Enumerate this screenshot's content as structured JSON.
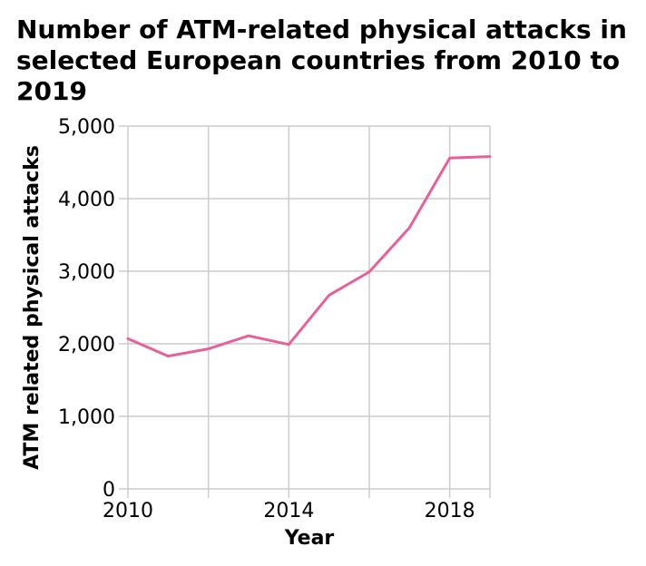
{
  "chart_data": {
    "type": "line",
    "title": "Number of ATM-related physical attacks in selected European countries from 2010 to 2019",
    "title_lines": [
      "Number of ATM-related physical attacks in",
      "selected European countries from 2010 to",
      "2019"
    ],
    "xlabel": "Year",
    "ylabel": "ATM related physical attacks",
    "x": [
      2010,
      2011,
      2012,
      2013,
      2014,
      2015,
      2016,
      2017,
      2018,
      2019
    ],
    "series": [
      {
        "values": [
          2070,
          1830,
          1930,
          2110,
          1990,
          2670,
          2990,
          3600,
          4560,
          4580
        ],
        "color": "#e8609a"
      }
    ],
    "xlim": [
      2010,
      2019
    ],
    "ylim": [
      0,
      5000
    ],
    "x_ticks": [
      2010,
      2014,
      2018
    ],
    "x_tick_labels": [
      "2010",
      "2014",
      "2018"
    ],
    "x_grid": [
      2010,
      2012,
      2014,
      2016,
      2018,
      2019
    ],
    "y_ticks": [
      0,
      1000,
      2000,
      3000,
      4000,
      5000
    ],
    "y_tick_labels": [
      "0",
      "1,000",
      "2,000",
      "3,000",
      "4,000",
      "5,000"
    ],
    "grid": true,
    "legend": "none"
  }
}
